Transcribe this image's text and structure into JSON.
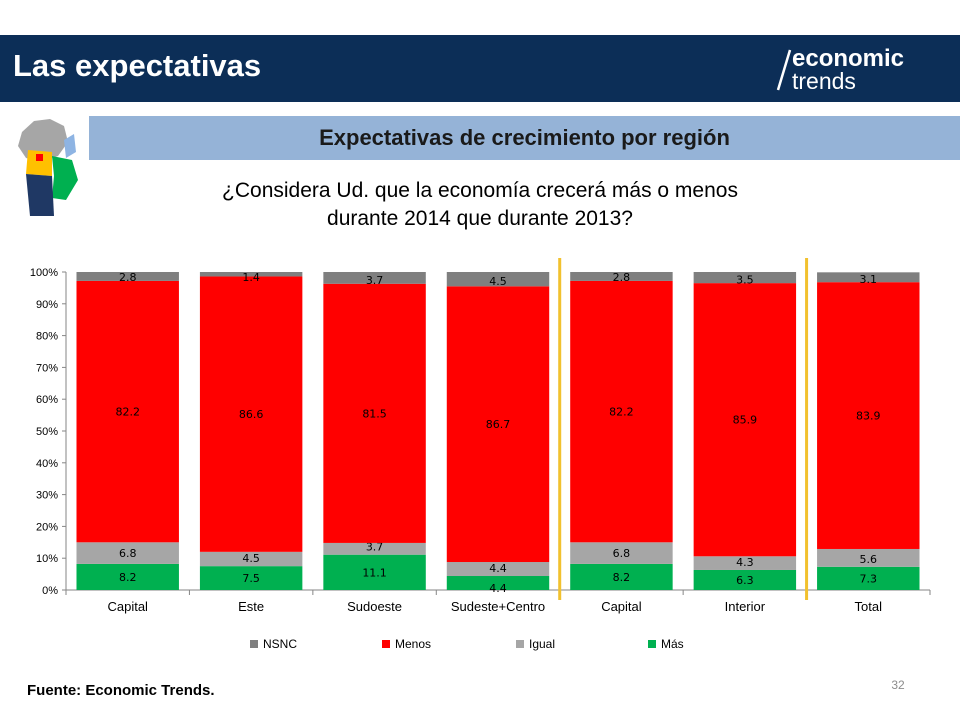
{
  "header": {
    "title": "Las expectativas",
    "logo_top": "economic",
    "logo_bottom": "trends"
  },
  "subtitle": "Expectativas de crecimiento por región",
  "question_line1": "¿Considera Ud. que la economía crecerá más o menos",
  "question_line2": "durante 2014 que durante 2013?",
  "source": "Fuente: Economic Trends.",
  "page_number": "32",
  "colors": {
    "header_bg": "#0c2e57",
    "banner_bg": "#95b3d7",
    "nsnc": "#7f7f7f",
    "menos": "#ff0000",
    "igual": "#a6a6a6",
    "mas": "#00b050",
    "separator": "#f2c12e"
  },
  "chart_data": {
    "type": "bar",
    "stacked": true,
    "percent_stacked": true,
    "categories": [
      "Capital",
      "Este",
      "Sudoeste",
      "Sudeste+Centro",
      "Capital",
      "Interior",
      "Total"
    ],
    "series": [
      {
        "name": "Más",
        "values": [
          8.2,
          7.5,
          11.1,
          4.4,
          8.2,
          6.3,
          7.3
        ]
      },
      {
        "name": "Igual",
        "values": [
          6.8,
          4.5,
          3.7,
          4.4,
          6.8,
          4.3,
          5.6
        ]
      },
      {
        "name": "Menos",
        "values": [
          82.2,
          86.6,
          81.5,
          86.7,
          82.2,
          85.9,
          83.9
        ]
      },
      {
        "name": "NSNC",
        "values": [
          2.8,
          1.4,
          3.7,
          4.5,
          2.8,
          3.5,
          3.1
        ]
      }
    ],
    "legend_order": [
      "NSNC",
      "Menos",
      "Igual",
      "Más"
    ],
    "y_ticks": [
      "0%",
      "10%",
      "20%",
      "30%",
      "40%",
      "50%",
      "60%",
      "70%",
      "80%",
      "90%",
      "100%"
    ],
    "ylim": [
      0,
      100
    ],
    "grid": false,
    "legend_position": "bottom",
    "separators_after_category_index": [
      3,
      5
    ]
  }
}
